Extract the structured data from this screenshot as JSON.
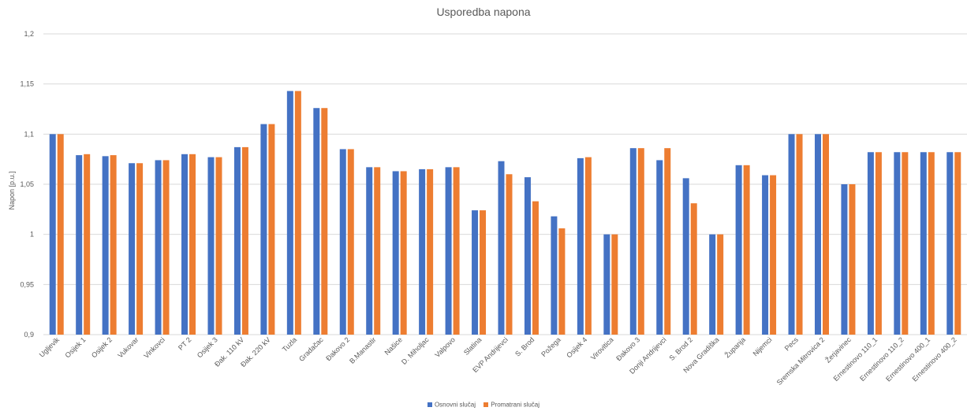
{
  "colors": {
    "series1": "#4472C4",
    "series2": "#ED7D31",
    "grid": "#d9d9d9",
    "axis_text": "#595959"
  },
  "chart_data": {
    "type": "bar",
    "title": "Usporedba napona",
    "xlabel": "",
    "ylabel": "Napon [p.u.]",
    "ylim": [
      0.9,
      1.2
    ],
    "yticks": [
      0.9,
      0.95,
      1.0,
      1.05,
      1.1,
      1.15,
      1.2
    ],
    "ytick_labels": [
      "0,9",
      "0,95",
      "1",
      "1,05",
      "1,1",
      "1,15",
      "1,2"
    ],
    "grid": true,
    "legend_position": "bottom",
    "categories": [
      "Ugljevik",
      "Osijek 1",
      "Osijek 2",
      "Vukovar",
      "Vinkovci",
      "PT 2",
      "Osijek 3",
      "Đak. 110 kV",
      "Đak. 220 kV",
      "Tuzla",
      "Gradačac",
      "Đakovo 2",
      "B.Manastir",
      "Našice",
      "D. Miholjac",
      "Valpovo",
      "Slatina",
      "EVP Andrijevci",
      "S. Brod",
      "Požega",
      "Osijek 4",
      "Virovitica",
      "Đakovo 3",
      "Donji Andrijevci",
      "S. Brod 2",
      "Nova Gradiška",
      "Županja",
      "Nijemci",
      "Pecs",
      "Sremska Mitrovica 2",
      "Žerjavinec",
      "Ernestinovo 110_1",
      "Ernestinovo 110_2",
      "Ernestinovo 400_1",
      "Ernestinovo 400_2"
    ],
    "series": [
      {
        "name": "Osnovni slučaj",
        "values": [
          1.1,
          1.079,
          1.078,
          1.071,
          1.074,
          1.08,
          1.077,
          1.087,
          1.11,
          1.143,
          1.126,
          1.085,
          1.067,
          1.063,
          1.065,
          1.067,
          1.024,
          1.073,
          1.057,
          1.018,
          1.076,
          1.0,
          1.086,
          1.074,
          1.056,
          1.0,
          1.069,
          1.059,
          1.1,
          1.1,
          1.05,
          1.082,
          1.082,
          1.082,
          1.082
        ]
      },
      {
        "name": "Promatrani slučaj",
        "values": [
          1.1,
          1.08,
          1.079,
          1.071,
          1.074,
          1.08,
          1.077,
          1.087,
          1.11,
          1.143,
          1.126,
          1.085,
          1.067,
          1.063,
          1.065,
          1.067,
          1.024,
          1.06,
          1.033,
          1.006,
          1.077,
          1.0,
          1.086,
          1.086,
          1.031,
          1.0,
          1.069,
          1.059,
          1.1,
          1.1,
          1.05,
          1.082,
          1.082,
          1.082,
          1.082
        ]
      }
    ]
  }
}
